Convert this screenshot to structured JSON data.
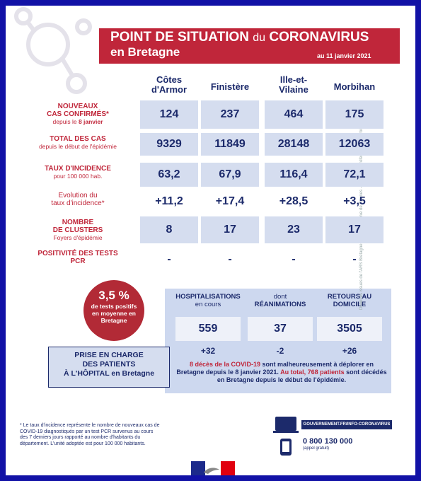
{
  "header": {
    "title": "POINT DE SITUATION",
    "title_link": "du",
    "title_end": "CORONAVIRUS",
    "subtitle": "en Bretagne",
    "date": "au 11 janvier 2021"
  },
  "table": {
    "columns": [
      [
        "Côtes",
        "d'Armor"
      ],
      [
        "Finistère"
      ],
      [
        "Ille-et-",
        "Vilaine"
      ],
      [
        "Morbihan"
      ]
    ],
    "rows": [
      {
        "label": [
          "NOUVEAUX",
          "CAS CONFIRMÉS*"
        ],
        "note": [
          "depuis le ",
          "8 janvier"
        ],
        "values": [
          "124",
          "237",
          "464",
          "175"
        ]
      },
      {
        "label": [
          "TOTAL DES CAS"
        ],
        "note": [
          "depuis le début de l'épidémie"
        ],
        "values": [
          "9329",
          "11849",
          "28148",
          "12063"
        ]
      },
      {
        "label": [
          "TAUX D'INCIDENCE"
        ],
        "note": [
          "pour 100 000 hab."
        ],
        "values": [
          "63,2",
          "67,9",
          "116,4",
          "72,1"
        ]
      },
      {
        "label": [
          "Evolution du",
          "taux d'incidence*"
        ],
        "values": [
          "+11,2",
          "+17,4",
          "+28,5",
          "+3,5"
        ]
      },
      {
        "label": [
          "NOMBRE",
          "DE CLUSTERS"
        ],
        "note": [
          "Foyers d'épidémie"
        ],
        "values": [
          "8",
          "17",
          "23",
          "17"
        ]
      },
      {
        "label": [
          "POSITIVITÉ DES TESTS",
          "PCR"
        ],
        "values": [
          "-",
          "-",
          "-",
          "-"
        ]
      }
    ]
  },
  "positivity": {
    "value": "3,5 %",
    "text": [
      "de tests positifs",
      "en moyenne en",
      "Bretagne"
    ]
  },
  "hospital": {
    "label": [
      "PRISE EN CHARGE",
      "DES PATIENTS",
      "À L'HÔPITAL en Bretagne"
    ],
    "columns": [
      {
        "title": [
          "HOSPITALISATIONS",
          "en cours"
        ],
        "value": "559",
        "change": "+32"
      },
      {
        "title": [
          "dont",
          "RÉANIMATIONS"
        ],
        "value": "37",
        "change": "-2"
      },
      {
        "title": [
          "RETOURS AU",
          "DOMICILE"
        ],
        "value": "3505",
        "change": "+26"
      }
    ],
    "note": [
      "8 décès de la COVID-19",
      " sont malheureusement à déplorer en Bretagne depuis le 8 janvier 2021.",
      " Au total, 768 patients",
      " sont décédés en Bretagne depuis le début de l'épidémie."
    ]
  },
  "footnote": "* Le taux d'incidence représente le nombre de nouveaux cas de COVID-19 diagnostiqués par un test PCR survenus au cours des 7 derniers jours rapporté au nombre d'habitants du département. L'unité adoptée est pour 100 000 habitants.",
  "side_note": "Données issues de l'ARS Bretagne et de l'Académie de Rennes - Création : Préfecture du Morbihan",
  "links": {
    "url": "GOUVERNEMENT.FR/INFO-CORONAVIRUS",
    "phone": "0 800 130 000",
    "phone_note": "(appel gratuit)"
  }
}
